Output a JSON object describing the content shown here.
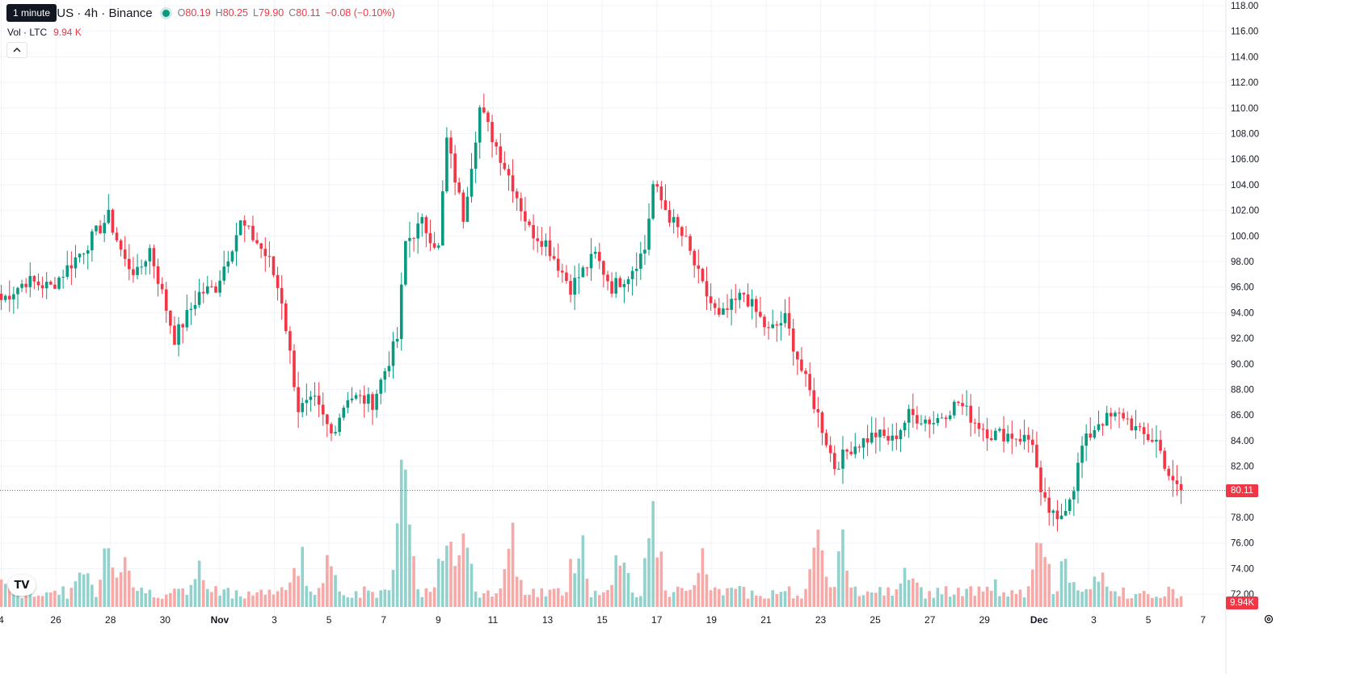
{
  "window": {
    "tooltip": "1 minute",
    "symbol_title": "n / TetherUS · 4h · Binance"
  },
  "ohlc": {
    "o_label": "O",
    "o": "80.19",
    "h_label": "H",
    "h": "80.25",
    "l_label": "L",
    "l": "79.90",
    "c_label": "C",
    "c": "80.11",
    "change": "−0.08 (−0.10%)"
  },
  "volume": {
    "label": "Vol · LTC",
    "value": "9.94 K",
    "tag": "9.94K"
  },
  "colors": {
    "up": "#089981",
    "down": "#f23645",
    "up_vol": "#92d2cc",
    "down_vol": "#f7a9a7",
    "grid": "#f0f3fa",
    "text": "#131722"
  },
  "icons": {
    "collapse": "chevron-up-icon",
    "logo": "tradingview-logo",
    "settings": "gear-icon"
  },
  "chart_data": {
    "type": "candlestick",
    "title": "n / TetherUS · 4h · Binance",
    "last_price": 80.11,
    "last_price_label": "80.11",
    "ylim": [
      71,
      118.5
    ],
    "y_ticks": [
      "118.00",
      "116.00",
      "114.00",
      "112.00",
      "110.00",
      "108.00",
      "106.00",
      "104.00",
      "102.00",
      "100.00",
      "98.00",
      "96.00",
      "94.00",
      "92.00",
      "90.00",
      "88.00",
      "86.00",
      "84.00",
      "82.00",
      "80.00",
      "78.00",
      "76.00",
      "74.00",
      "72.00"
    ],
    "x_ticks": [
      "4",
      "26",
      "28",
      "30",
      "Nov",
      "3",
      "5",
      "7",
      "9",
      "11",
      "13",
      "15",
      "17",
      "19",
      "21",
      "23",
      "25",
      "27",
      "29",
      "Dec",
      "3",
      "5",
      "7"
    ],
    "bold_x_ticks": [
      "Nov",
      "Dec"
    ],
    "anchors": [
      [
        0,
        95.0
      ],
      [
        6,
        96.5
      ],
      [
        12,
        96.0
      ],
      [
        20,
        99.0
      ],
      [
        26,
        101.5
      ],
      [
        30,
        98.0
      ],
      [
        33,
        97.0
      ],
      [
        36,
        99.0
      ],
      [
        42,
        92.0
      ],
      [
        48,
        95.5
      ],
      [
        52,
        96.0
      ],
      [
        58,
        101.0
      ],
      [
        62,
        99.5
      ],
      [
        65,
        98.0
      ],
      [
        68,
        95.0
      ],
      [
        72,
        86.5
      ],
      [
        76,
        87.0
      ],
      [
        80,
        84.5
      ],
      [
        84,
        87.5
      ],
      [
        90,
        87.0
      ],
      [
        96,
        92.0
      ],
      [
        98,
        99.5
      ],
      [
        102,
        101.0
      ],
      [
        106,
        99.0
      ],
      [
        108,
        107.5
      ],
      [
        112,
        101.5
      ],
      [
        116,
        110.0
      ],
      [
        120,
        107.0
      ],
      [
        124,
        104.0
      ],
      [
        128,
        100.5
      ],
      [
        132,
        99.5
      ],
      [
        138,
        96.0
      ],
      [
        144,
        98.5
      ],
      [
        148,
        96.0
      ],
      [
        152,
        97.0
      ],
      [
        156,
        99.0
      ],
      [
        158,
        104.0
      ],
      [
        162,
        101.5
      ],
      [
        166,
        99.5
      ],
      [
        170,
        96.0
      ],
      [
        174,
        93.5
      ],
      [
        180,
        95.5
      ],
      [
        186,
        92.5
      ],
      [
        190,
        93.5
      ],
      [
        194,
        89.5
      ],
      [
        198,
        86.0
      ],
      [
        202,
        82.0
      ],
      [
        206,
        83.5
      ],
      [
        212,
        84.5
      ],
      [
        216,
        84.0
      ],
      [
        220,
        86.0
      ],
      [
        226,
        85.5
      ],
      [
        232,
        87.0
      ],
      [
        236,
        85.5
      ],
      [
        240,
        84.5
      ],
      [
        244,
        84.5
      ],
      [
        250,
        84.0
      ],
      [
        252,
        79.5
      ],
      [
        256,
        77.5
      ],
      [
        260,
        80.5
      ],
      [
        262,
        83.5
      ],
      [
        266,
        85.5
      ],
      [
        272,
        86.0
      ],
      [
        276,
        84.5
      ],
      [
        280,
        84.0
      ],
      [
        284,
        80.5
      ],
      [
        286,
        80.11
      ]
    ],
    "volume_peaks": [
      [
        0,
        0.25
      ],
      [
        20,
        0.3
      ],
      [
        26,
        0.55
      ],
      [
        30,
        0.4
      ],
      [
        48,
        0.3
      ],
      [
        72,
        0.45
      ],
      [
        80,
        0.35
      ],
      [
        98,
        1.0
      ],
      [
        108,
        0.6
      ],
      [
        112,
        0.75
      ],
      [
        124,
        0.5
      ],
      [
        140,
        0.55
      ],
      [
        150,
        0.45
      ],
      [
        158,
        0.65
      ],
      [
        170,
        0.35
      ],
      [
        198,
        0.45
      ],
      [
        204,
        0.5
      ],
      [
        220,
        0.3
      ],
      [
        240,
        0.2
      ],
      [
        252,
        0.5
      ],
      [
        258,
        0.35
      ],
      [
        266,
        0.25
      ],
      [
        286,
        0.1
      ]
    ]
  }
}
